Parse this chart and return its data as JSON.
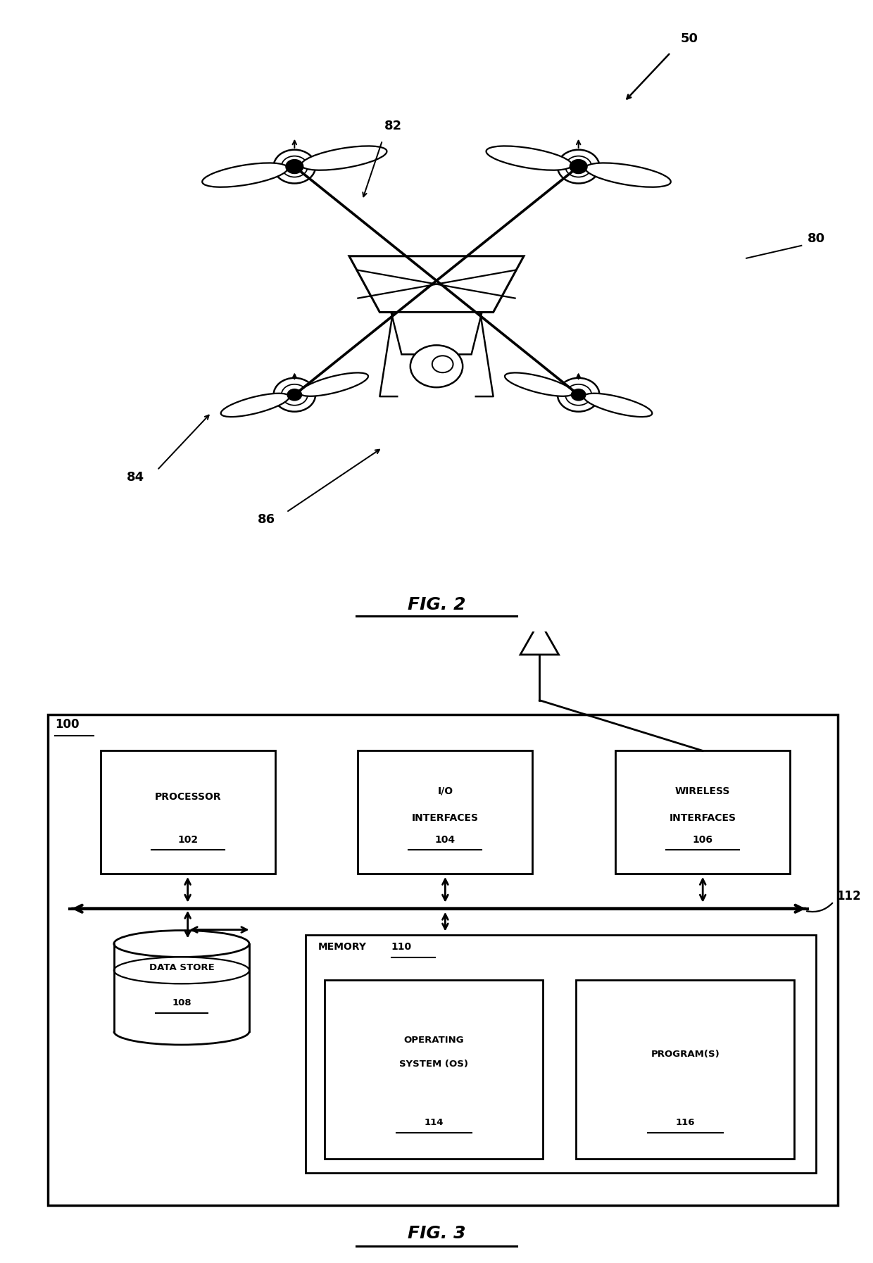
{
  "bg_color": "#ffffff",
  "fig_width": 12.4,
  "fig_height": 17.94,
  "fig2_label": "FIG. 2",
  "fig3_label": "FIG. 3",
  "ref_50": "50",
  "ref_80": "80",
  "ref_82": "82",
  "ref_84": "84",
  "ref_86": "86",
  "ref_100": "100",
  "ref_102": "102",
  "ref_104": "104",
  "ref_106": "106",
  "ref_108": "108",
  "ref_110": "110",
  "ref_112": "112",
  "ref_114": "114",
  "ref_116": "116"
}
